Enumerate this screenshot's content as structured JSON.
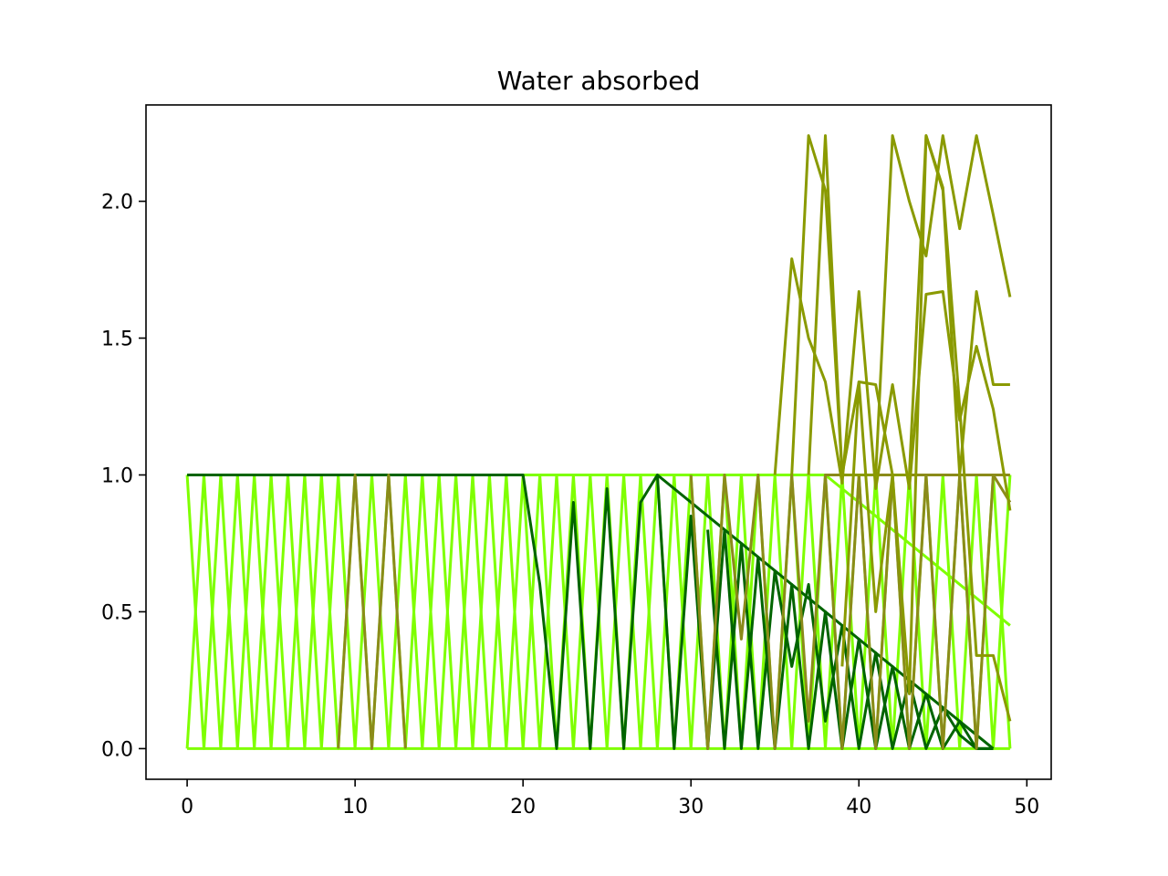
{
  "chart_data": {
    "type": "line",
    "title": "Water absorbed",
    "xlabel": "",
    "ylabel": "",
    "xlim": [
      -2.45,
      51.45
    ],
    "ylim": [
      -0.112,
      2.352
    ],
    "xticks": [
      0,
      10,
      20,
      30,
      40,
      50
    ],
    "yticks": [
      0.0,
      0.5,
      1.0,
      1.5,
      2.0
    ],
    "xtick_labels": [
      "0",
      "10",
      "20",
      "30",
      "40",
      "50"
    ],
    "ytick_labels": [
      "0.0",
      "0.5",
      "1.0",
      "1.5",
      "2.0"
    ],
    "grid": false,
    "legend": "none",
    "colors": {
      "olive": "#8a9a00",
      "brown_olive": "#8b8b1a",
      "dark_green": "#006400",
      "lime": "#7fff00"
    },
    "series": [
      {
        "color": "#7fff00",
        "x": [
          0,
          1,
          2,
          3,
          4,
          5,
          6,
          7,
          8,
          9,
          10,
          11,
          12,
          13,
          14,
          15,
          16,
          17,
          18,
          19,
          20,
          21,
          22,
          23,
          24,
          25,
          26,
          27,
          28,
          29,
          30,
          31,
          32,
          33,
          34,
          35,
          36,
          37,
          38,
          39,
          40,
          41,
          42,
          43,
          44,
          45,
          46,
          47,
          48,
          49
        ],
        "y": [
          0,
          1,
          0,
          1,
          0,
          1,
          0,
          1,
          0,
          1,
          0,
          1,
          0,
          1,
          0,
          1,
          0,
          1,
          0,
          1,
          0,
          1,
          0,
          1,
          0,
          1,
          0,
          1,
          0,
          1,
          0,
          1,
          0,
          1,
          0,
          1,
          0,
          1,
          0,
          1,
          0,
          1,
          0,
          1,
          0,
          1,
          0,
          1,
          0,
          1
        ]
      },
      {
        "color": "#7fff00",
        "x": [
          0,
          1,
          2,
          3,
          4,
          5,
          6,
          7,
          8,
          9,
          10,
          11,
          12,
          13,
          14,
          15,
          16,
          17,
          18,
          19,
          20,
          21,
          22,
          23,
          24,
          25,
          26,
          27,
          28,
          29,
          30,
          31,
          32,
          33,
          34,
          35,
          36,
          37,
          38,
          39,
          40,
          41,
          42,
          43,
          44,
          45,
          46,
          47,
          48,
          49
        ],
        "y": [
          1,
          0,
          1,
          0,
          1,
          0,
          1,
          0,
          1,
          0,
          1,
          0,
          1,
          0,
          1,
          0,
          1,
          0,
          1,
          0,
          1,
          0,
          1,
          0,
          1,
          0,
          1,
          0,
          1,
          0,
          1,
          0,
          1,
          0,
          1,
          0,
          1,
          0,
          1,
          0,
          1,
          0,
          1,
          0,
          1,
          0,
          1,
          0,
          1,
          0
        ]
      },
      {
        "color": "#7fff00",
        "x": [
          0,
          38,
          49
        ],
        "y": [
          1,
          1,
          0.45
        ]
      },
      {
        "color": "#7fff00",
        "x": [
          0,
          49
        ],
        "y": [
          0,
          0
        ]
      },
      {
        "color": "#006400",
        "x": [
          0,
          20,
          21,
          22,
          23,
          24,
          25,
          26,
          27,
          28,
          29,
          30,
          31,
          32,
          33,
          34,
          35,
          36,
          37,
          38,
          39,
          40,
          41,
          42,
          43,
          44,
          45,
          46,
          47,
          48
        ],
        "y": [
          1,
          1,
          0.6,
          0,
          0.9,
          0,
          0.95,
          0,
          0.9,
          1,
          0,
          0.85,
          0,
          0.8,
          0,
          0.7,
          0,
          0.6,
          0,
          0.5,
          0,
          0.4,
          0,
          0.3,
          0,
          0.2,
          0,
          0.1,
          0,
          0
        ]
      },
      {
        "color": "#006400",
        "x": [
          28,
          48
        ],
        "y": [
          1,
          0
        ]
      },
      {
        "color": "#006400",
        "x": [
          31,
          32,
          33,
          34,
          35,
          36,
          37,
          38,
          39,
          40,
          41,
          42,
          43,
          44,
          45,
          46,
          47,
          48
        ],
        "y": [
          0.8,
          0,
          0.75,
          0,
          0.65,
          0.3,
          0.6,
          0.1,
          0.45,
          0,
          0.35,
          0,
          0.25,
          0,
          0.15,
          0.05,
          0,
          0
        ]
      },
      {
        "color": "#8b8b1a",
        "x": [
          9,
          10,
          11,
          12,
          13
        ],
        "y": [
          0,
          1,
          0,
          1,
          0
        ]
      },
      {
        "color": "#8b8b1a",
        "x": [
          30,
          31,
          32,
          33,
          34,
          35,
          36,
          37,
          38,
          39,
          40,
          41,
          42,
          43,
          44,
          45,
          46,
          47,
          48,
          49
        ],
        "y": [
          1,
          0,
          1,
          0.4,
          1,
          0,
          1,
          0.1,
          1,
          0,
          1,
          0,
          1,
          0,
          1,
          0,
          1,
          0,
          1,
          0.9
        ]
      },
      {
        "color": "#8b8b1a",
        "x": [
          38,
          49
        ],
        "y": [
          1,
          1
        ]
      },
      {
        "color": "#8a9a00",
        "x": [
          35,
          36,
          37,
          38,
          39,
          40,
          41,
          42,
          43,
          44,
          45,
          46,
          47,
          48,
          49
        ],
        "y": [
          1,
          1.79,
          1.5,
          1.34,
          0.97,
          1.67,
          0.95,
          1.33,
          0.95,
          1.66,
          1.67,
          1.2,
          1.47,
          1.24,
          0.87
        ]
      },
      {
        "color": "#8a9a00",
        "x": [
          36,
          37,
          38,
          39,
          40,
          41,
          42,
          43,
          44,
          45,
          46,
          47,
          48,
          49
        ],
        "y": [
          1,
          2.24,
          2.04,
          1.0,
          1.34,
          1.33,
          1.0,
          1.0,
          2.24,
          2.04,
          1.0,
          1.67,
          1.33,
          1.33
        ]
      },
      {
        "color": "#8a9a00",
        "x": [
          37,
          38,
          39,
          40,
          41,
          42,
          43,
          44,
          45,
          46,
          47,
          48,
          49
        ],
        "y": [
          1.0,
          2.24,
          1.0,
          1.0,
          1.0,
          2.24,
          2.0,
          1.8,
          2.24,
          1.9,
          2.24,
          1.95,
          1.65
        ]
      },
      {
        "color": "#8a9a00",
        "x": [
          39,
          40,
          41,
          42,
          43,
          44,
          45,
          46,
          47,
          48,
          49
        ],
        "y": [
          0.3,
          1.34,
          0.5,
          1.0,
          0.2,
          2.24,
          2.05,
          1.25,
          0.34,
          0.34,
          0.1
        ]
      }
    ]
  }
}
